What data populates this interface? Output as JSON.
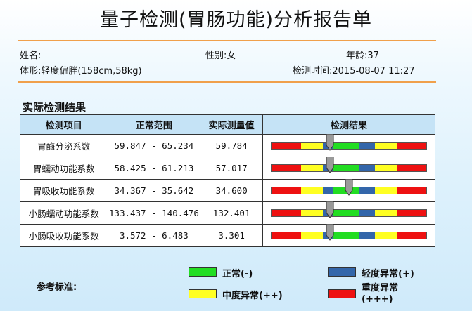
{
  "title": "量子检测(胃肠功能)分析报告单",
  "patient": {
    "name_label": "姓名:",
    "gender_label": "性别:",
    "gender_value": "女",
    "age_label": "年龄:",
    "age_value": "37",
    "body_label": "体形:",
    "body_value": "轻度偏胖(158cm,58kg)",
    "time_label": "检测时间:",
    "time_value": "2015-08-07 11:27"
  },
  "section_title": "实际检测结果",
  "table": {
    "headers": [
      "检测项目",
      "正常范围",
      "实际测量值",
      "检测结果"
    ],
    "rows": [
      {
        "item": "胃酶分泌系数",
        "range": "59.847 - 65.234",
        "value": "59.784",
        "marker_fraction": 0.38
      },
      {
        "item": "胃蠕动功能系数",
        "range": "58.425 - 61.213",
        "value": "57.017",
        "marker_fraction": 0.38
      },
      {
        "item": "胃吸收功能系数",
        "range": "34.367 - 35.642",
        "value": "34.600",
        "marker_fraction": 0.5
      },
      {
        "item": "小肠蠕动功能系数",
        "range": "133.437 - 140.476",
        "value": "132.401",
        "marker_fraction": 0.38
      },
      {
        "item": "小肠吸收功能系数",
        "range": "3.572 - 6.483",
        "value": "3.301",
        "marker_fraction": 0.38
      }
    ]
  },
  "scale_segments": [
    {
      "color": "#ee1111",
      "fraction": 0.19
    },
    {
      "color": "#ffff22",
      "fraction": 0.14
    },
    {
      "color": "#3366aa",
      "fraction": 0.07
    },
    {
      "color": "#22dd22",
      "fraction": 0.17
    },
    {
      "color": "#3366aa",
      "fraction": 0.1
    },
    {
      "color": "#ffff22",
      "fraction": 0.14
    },
    {
      "color": "#ee1111",
      "fraction": 0.19
    }
  ],
  "legend": {
    "label": "参考标准:",
    "items": [
      {
        "text": "正常(-)",
        "color": "#22dd22"
      },
      {
        "text": "轻度异常(+)",
        "color": "#3366aa"
      },
      {
        "text": "中度异常(++)",
        "color": "#ffff22"
      },
      {
        "text": "重度异常",
        "text2": "(+++)",
        "color": "#ee1111"
      }
    ]
  },
  "colors": {
    "accent_rule": "#f0a04b",
    "header_bg": "#c5e3f6",
    "marker": "#9a9a9a"
  }
}
